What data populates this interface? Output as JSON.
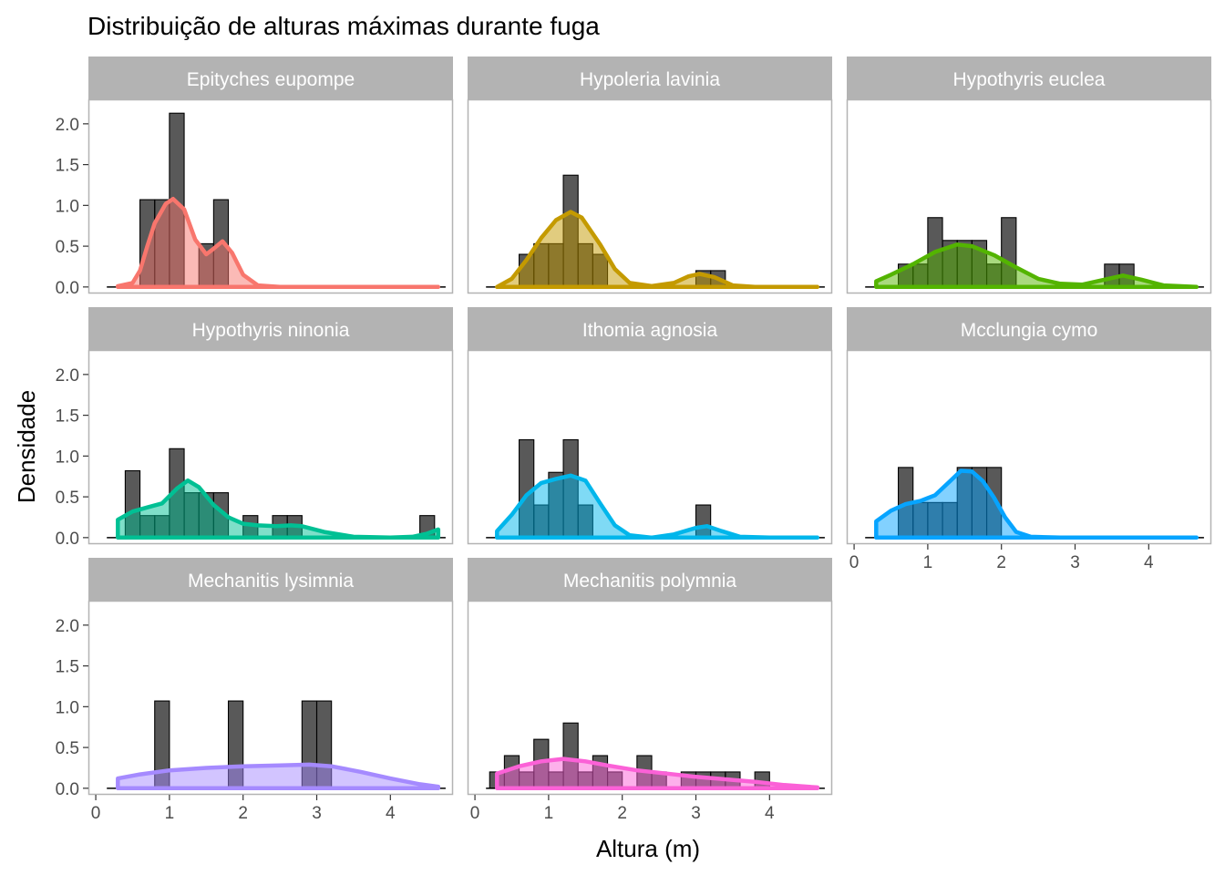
{
  "chart_data": {
    "type": "histogram-density-facets",
    "title": "Distribuição de alturas máximas durante fuga",
    "xlabel": "Altura (m)",
    "ylabel": "Densidade",
    "xlim": [
      -0.1,
      4.85
    ],
    "ylim": [
      -0.08,
      2.3
    ],
    "x_ticks": [
      "0",
      "1",
      "2",
      "3",
      "4"
    ],
    "y_ticks": [
      "0.0",
      "0.5",
      "1.0",
      "1.5",
      "2.0"
    ],
    "bin_width": 0.2,
    "histogram_color": "#000000",
    "facets": [
      {
        "name": "Epityches eupompe",
        "color": "#F8766D",
        "bins": [
          [
            0.7,
            1.07
          ],
          [
            0.9,
            1.07
          ],
          [
            1.1,
            2.13
          ],
          [
            1.5,
            0.53
          ],
          [
            1.7,
            1.07
          ]
        ],
        "density": [
          [
            0.3,
            0.01
          ],
          [
            0.5,
            0.05
          ],
          [
            0.6,
            0.2
          ],
          [
            0.7,
            0.5
          ],
          [
            0.8,
            0.78
          ],
          [
            0.95,
            1.02
          ],
          [
            1.05,
            1.08
          ],
          [
            1.2,
            0.95
          ],
          [
            1.35,
            0.58
          ],
          [
            1.5,
            0.4
          ],
          [
            1.6,
            0.47
          ],
          [
            1.72,
            0.56
          ],
          [
            1.85,
            0.42
          ],
          [
            2.0,
            0.15
          ],
          [
            2.2,
            0.02
          ],
          [
            2.5,
            0.0
          ],
          [
            3.5,
            0.0
          ],
          [
            4.65,
            0.0
          ]
        ]
      },
      {
        "name": "Hypoleria lavinia",
        "color": "#C49A00",
        "bins": [
          [
            0.7,
            0.4
          ],
          [
            0.9,
            0.53
          ],
          [
            1.1,
            0.53
          ],
          [
            1.3,
            1.37
          ],
          [
            1.5,
            0.53
          ],
          [
            1.7,
            0.4
          ],
          [
            3.1,
            0.2
          ],
          [
            3.3,
            0.2
          ]
        ],
        "density": [
          [
            0.3,
            0.0
          ],
          [
            0.5,
            0.1
          ],
          [
            0.7,
            0.33
          ],
          [
            0.9,
            0.6
          ],
          [
            1.1,
            0.82
          ],
          [
            1.3,
            0.92
          ],
          [
            1.45,
            0.85
          ],
          [
            1.7,
            0.52
          ],
          [
            1.9,
            0.22
          ],
          [
            2.1,
            0.05
          ],
          [
            2.4,
            0.01
          ],
          [
            2.7,
            0.05
          ],
          [
            2.9,
            0.13
          ],
          [
            3.05,
            0.16
          ],
          [
            3.25,
            0.12
          ],
          [
            3.5,
            0.02
          ],
          [
            3.8,
            0.0
          ],
          [
            4.65,
            0.0
          ]
        ]
      },
      {
        "name": "Hypothyris euclea",
        "color": "#53B400",
        "bins": [
          [
            0.7,
            0.28
          ],
          [
            0.9,
            0.28
          ],
          [
            1.1,
            0.85
          ],
          [
            1.3,
            0.57
          ],
          [
            1.5,
            0.57
          ],
          [
            1.7,
            0.57
          ],
          [
            1.9,
            0.28
          ],
          [
            2.1,
            0.85
          ],
          [
            3.5,
            0.28
          ],
          [
            3.7,
            0.28
          ]
        ],
        "density": [
          [
            0.3,
            0.07
          ],
          [
            0.5,
            0.15
          ],
          [
            0.8,
            0.28
          ],
          [
            1.1,
            0.43
          ],
          [
            1.4,
            0.52
          ],
          [
            1.6,
            0.5
          ],
          [
            1.9,
            0.39
          ],
          [
            2.2,
            0.24
          ],
          [
            2.5,
            0.1
          ],
          [
            2.8,
            0.04
          ],
          [
            3.1,
            0.03
          ],
          [
            3.4,
            0.09
          ],
          [
            3.65,
            0.14
          ],
          [
            3.9,
            0.09
          ],
          [
            4.2,
            0.02
          ],
          [
            4.65,
            0.0
          ]
        ]
      },
      {
        "name": "Hypothyris ninonia",
        "color": "#00C094",
        "bins": [
          [
            0.5,
            0.82
          ],
          [
            0.7,
            0.27
          ],
          [
            0.9,
            0.27
          ],
          [
            1.1,
            1.09
          ],
          [
            1.3,
            0.55
          ],
          [
            1.5,
            0.55
          ],
          [
            1.7,
            0.55
          ],
          [
            2.1,
            0.27
          ],
          [
            2.5,
            0.27
          ],
          [
            2.7,
            0.27
          ],
          [
            4.5,
            0.27
          ]
        ],
        "density": [
          [
            0.3,
            0.22
          ],
          [
            0.5,
            0.32
          ],
          [
            0.7,
            0.37
          ],
          [
            0.9,
            0.42
          ],
          [
            1.1,
            0.6
          ],
          [
            1.25,
            0.7
          ],
          [
            1.4,
            0.62
          ],
          [
            1.6,
            0.4
          ],
          [
            1.8,
            0.25
          ],
          [
            2.0,
            0.17
          ],
          [
            2.2,
            0.15
          ],
          [
            2.45,
            0.14
          ],
          [
            2.65,
            0.15
          ],
          [
            2.8,
            0.14
          ],
          [
            3.1,
            0.07
          ],
          [
            3.5,
            0.01
          ],
          [
            4.0,
            0.0
          ],
          [
            4.3,
            0.01
          ],
          [
            4.5,
            0.05
          ],
          [
            4.65,
            0.1
          ]
        ]
      },
      {
        "name": "Ithomia agnosia",
        "color": "#00B6EB",
        "bins": [
          [
            0.7,
            1.2
          ],
          [
            0.9,
            0.4
          ],
          [
            1.1,
            0.8
          ],
          [
            1.3,
            1.2
          ],
          [
            1.5,
            0.4
          ],
          [
            3.1,
            0.4
          ]
        ],
        "density": [
          [
            0.3,
            0.08
          ],
          [
            0.5,
            0.28
          ],
          [
            0.7,
            0.52
          ],
          [
            0.9,
            0.67
          ],
          [
            1.1,
            0.72
          ],
          [
            1.3,
            0.76
          ],
          [
            1.5,
            0.7
          ],
          [
            1.7,
            0.42
          ],
          [
            1.9,
            0.15
          ],
          [
            2.1,
            0.03
          ],
          [
            2.4,
            0.0
          ],
          [
            2.7,
            0.04
          ],
          [
            3.0,
            0.12
          ],
          [
            3.15,
            0.14
          ],
          [
            3.35,
            0.08
          ],
          [
            3.6,
            0.01
          ],
          [
            4.0,
            0.0
          ],
          [
            4.65,
            0.0
          ]
        ]
      },
      {
        "name": "Mcclungia cymo",
        "color": "#06A4FF",
        "bins": [
          [
            0.7,
            0.86
          ],
          [
            0.9,
            0.43
          ],
          [
            1.1,
            0.43
          ],
          [
            1.3,
            0.43
          ],
          [
            1.5,
            0.86
          ],
          [
            1.7,
            0.86
          ],
          [
            1.9,
            0.86
          ]
        ],
        "density": [
          [
            0.3,
            0.2
          ],
          [
            0.5,
            0.33
          ],
          [
            0.7,
            0.41
          ],
          [
            0.9,
            0.45
          ],
          [
            1.1,
            0.52
          ],
          [
            1.3,
            0.69
          ],
          [
            1.45,
            0.82
          ],
          [
            1.6,
            0.81
          ],
          [
            1.75,
            0.69
          ],
          [
            1.9,
            0.49
          ],
          [
            2.05,
            0.25
          ],
          [
            2.2,
            0.07
          ],
          [
            2.4,
            0.01
          ],
          [
            2.8,
            0.0
          ],
          [
            4.65,
            0.0
          ]
        ]
      },
      {
        "name": "Mechanitis lysimnia",
        "color": "#A58AFF",
        "bins": [
          [
            0.9,
            1.07
          ],
          [
            1.9,
            1.07
          ],
          [
            2.9,
            1.07
          ],
          [
            3.1,
            1.07
          ]
        ],
        "density": [
          [
            0.3,
            0.12
          ],
          [
            0.6,
            0.17
          ],
          [
            1.0,
            0.22
          ],
          [
            1.5,
            0.25
          ],
          [
            2.0,
            0.27
          ],
          [
            2.5,
            0.28
          ],
          [
            2.9,
            0.29
          ],
          [
            3.2,
            0.27
          ],
          [
            3.6,
            0.2
          ],
          [
            4.0,
            0.12
          ],
          [
            4.4,
            0.05
          ],
          [
            4.65,
            0.02
          ]
        ]
      },
      {
        "name": "Mechanitis polymnia",
        "color": "#FB61D7",
        "bins": [
          [
            0.3,
            0.2
          ],
          [
            0.5,
            0.4
          ],
          [
            0.7,
            0.2
          ],
          [
            0.9,
            0.6
          ],
          [
            1.1,
            0.2
          ],
          [
            1.3,
            0.8
          ],
          [
            1.5,
            0.2
          ],
          [
            1.7,
            0.4
          ],
          [
            1.9,
            0.2
          ],
          [
            2.3,
            0.4
          ],
          [
            2.5,
            0.2
          ],
          [
            2.9,
            0.2
          ],
          [
            3.1,
            0.2
          ],
          [
            3.3,
            0.2
          ],
          [
            3.5,
            0.2
          ],
          [
            3.9,
            0.2
          ]
        ],
        "density": [
          [
            0.3,
            0.18
          ],
          [
            0.6,
            0.27
          ],
          [
            0.9,
            0.33
          ],
          [
            1.2,
            0.36
          ],
          [
            1.5,
            0.33
          ],
          [
            1.8,
            0.28
          ],
          [
            2.2,
            0.22
          ],
          [
            2.6,
            0.18
          ],
          [
            3.0,
            0.14
          ],
          [
            3.4,
            0.11
          ],
          [
            3.8,
            0.08
          ],
          [
            4.2,
            0.04
          ],
          [
            4.65,
            0.01
          ]
        ]
      }
    ]
  }
}
